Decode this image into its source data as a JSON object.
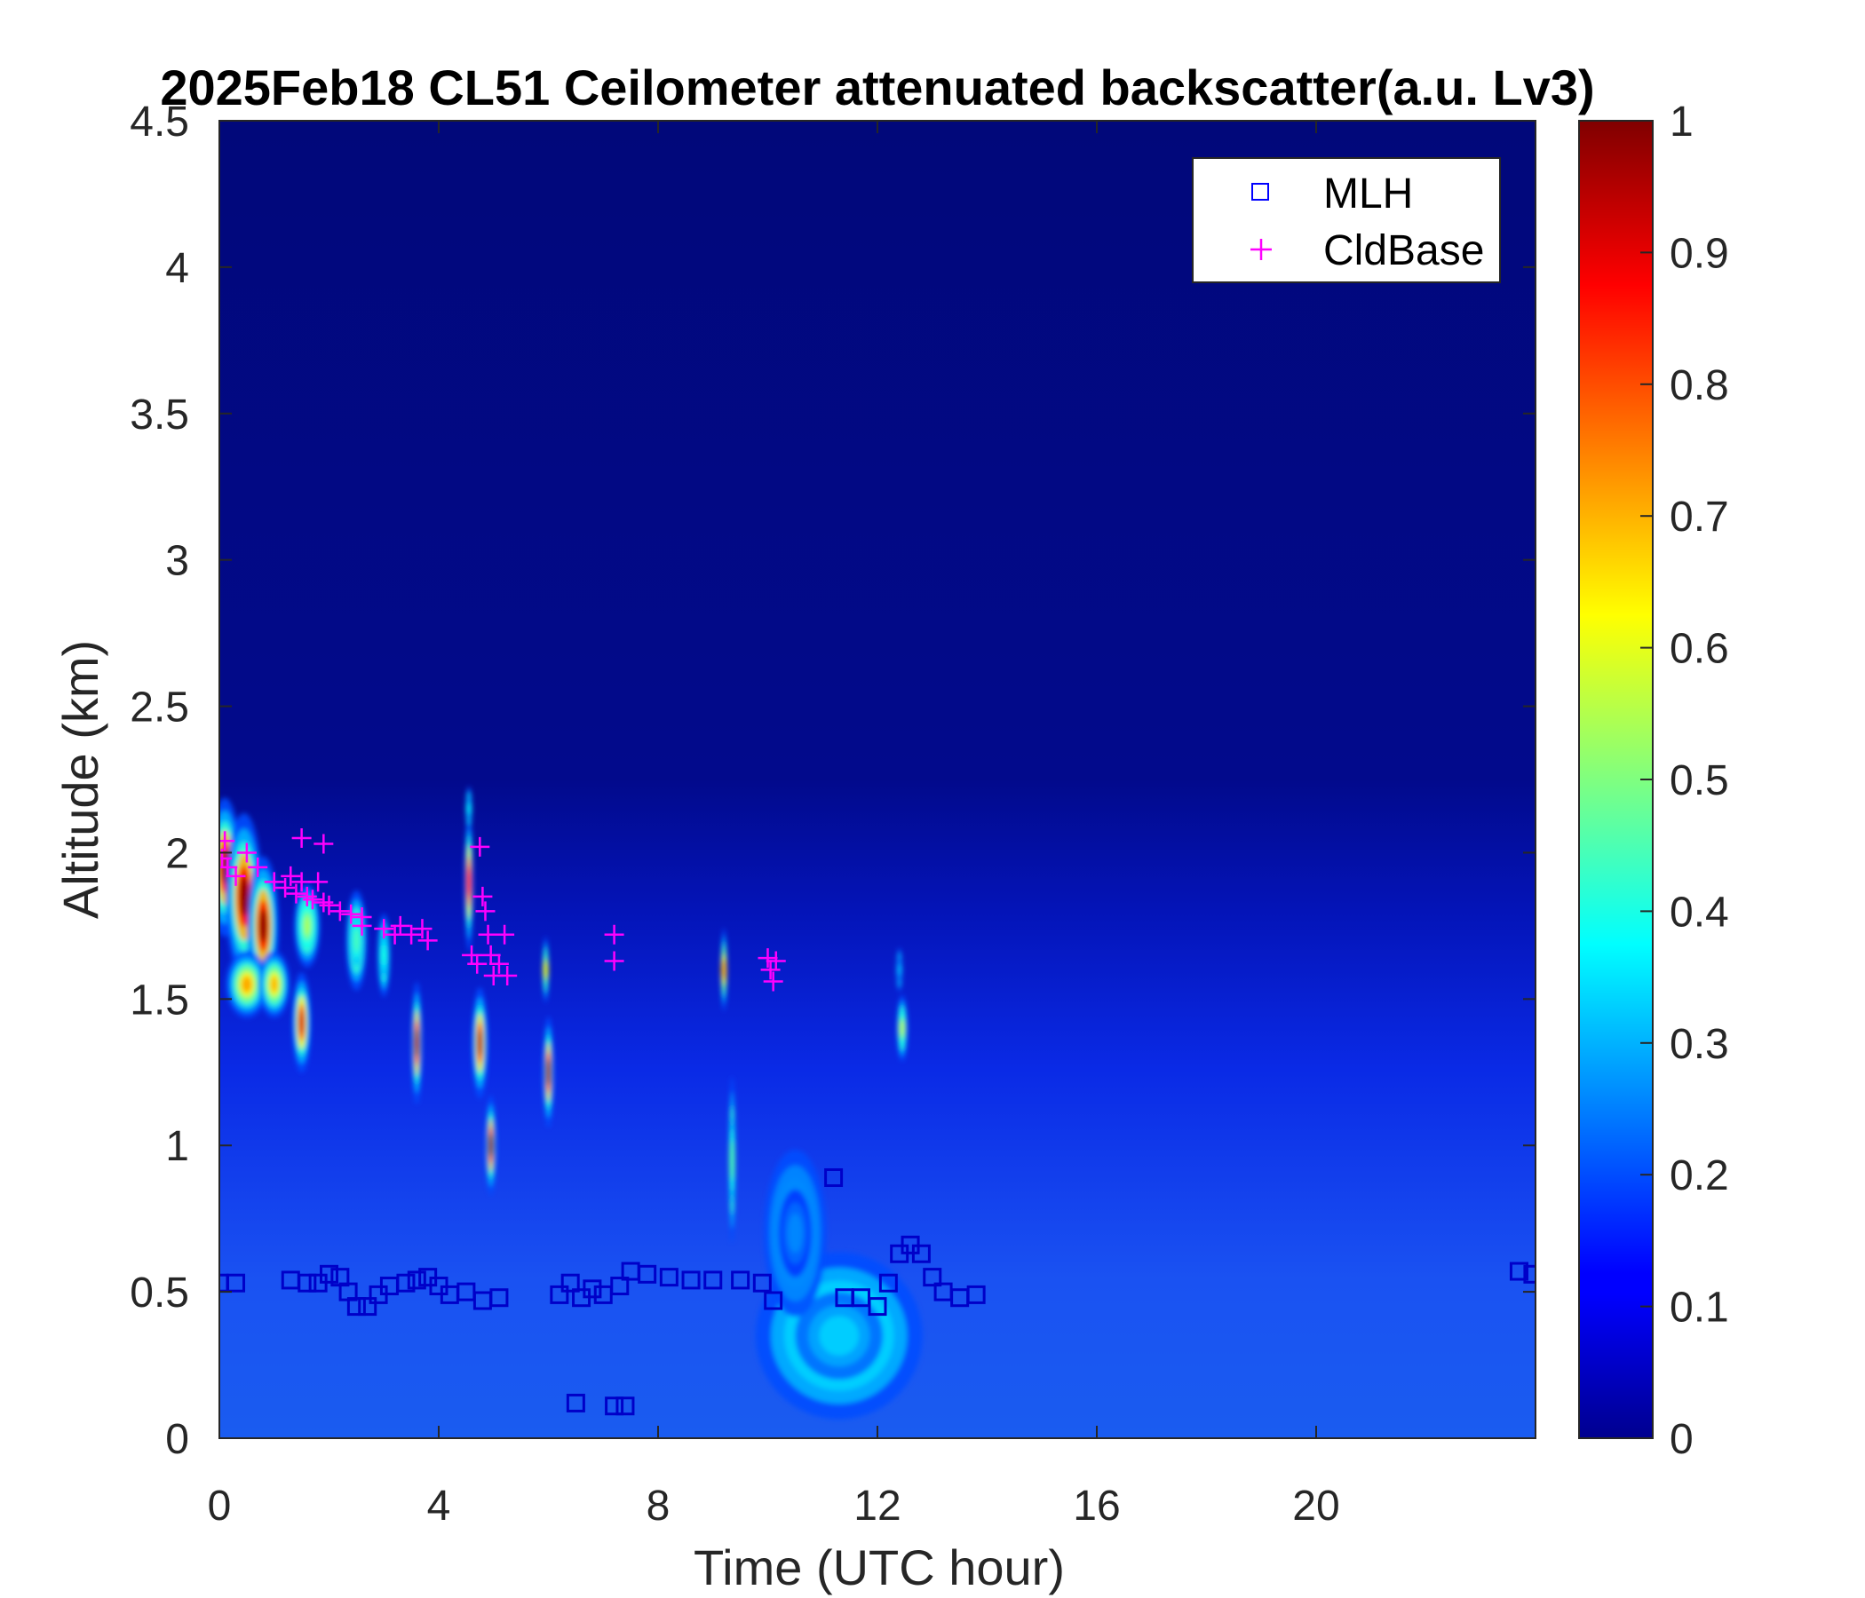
{
  "chart_data": {
    "type": "heatmap",
    "title": "2025Feb18 CL51 Ceilometer attenuated backscatter(a.u. Lv3)",
    "xlabel": "Time (UTC hour)",
    "ylabel": "Altitude (km)",
    "xlim": [
      0,
      24
    ],
    "ylim": [
      0,
      4.5
    ],
    "xticks": [
      0,
      4,
      8,
      12,
      16,
      20
    ],
    "xtick_labels": [
      "0",
      "4",
      "8",
      "12",
      "16",
      "20"
    ],
    "yticks": [
      0,
      0.5,
      1,
      1.5,
      2,
      2.5,
      3,
      3.5,
      4,
      4.5
    ],
    "ytick_labels": [
      "0",
      "0.5",
      "1",
      "1.5",
      "2",
      "2.5",
      "3",
      "3.5",
      "4",
      "4.5"
    ],
    "colormap": "jet",
    "colorbar": {
      "range": [
        0,
        1
      ],
      "ticks": [
        0,
        0.1,
        0.2,
        0.3,
        0.4,
        0.5,
        0.6,
        0.7,
        0.8,
        0.9,
        1
      ],
      "tick_labels": [
        "0",
        "0.1",
        "0.2",
        "0.3",
        "0.4",
        "0.5",
        "0.6",
        "0.7",
        "0.8",
        "0.9",
        "1"
      ]
    },
    "legend": {
      "placement": "top-right",
      "entries": [
        {
          "label": "MLH",
          "marker": "square",
          "color": "#0000ff"
        },
        {
          "label": "CldBase",
          "marker": "plus",
          "color": "#ff00ff"
        }
      ]
    },
    "features": [
      {
        "t": 0.1,
        "z": 1.95,
        "v": 0.98,
        "dt": 0.3,
        "dz": 0.25
      },
      {
        "t": 0.45,
        "z": 1.85,
        "v": 1.0,
        "dt": 0.35,
        "dz": 0.3
      },
      {
        "t": 0.8,
        "z": 1.75,
        "v": 1.0,
        "dt": 0.3,
        "dz": 0.25
      },
      {
        "t": 0.5,
        "z": 1.55,
        "v": 0.72,
        "dt": 0.4,
        "dz": 0.12
      },
      {
        "t": 1.0,
        "z": 1.55,
        "v": 0.7,
        "dt": 0.3,
        "dz": 0.12
      },
      {
        "t": 1.5,
        "z": 1.42,
        "v": 0.92,
        "dt": 0.18,
        "dz": 0.18
      },
      {
        "t": 1.6,
        "z": 1.75,
        "v": 0.55,
        "dt": 0.25,
        "dz": 0.15
      },
      {
        "t": 2.5,
        "z": 1.7,
        "v": 0.45,
        "dt": 0.2,
        "dz": 0.18
      },
      {
        "t": 3.0,
        "z": 1.65,
        "v": 0.4,
        "dt": 0.12,
        "dz": 0.15
      },
      {
        "t": 3.6,
        "z": 1.35,
        "v": 0.97,
        "dt": 0.1,
        "dz": 0.22
      },
      {
        "t": 4.55,
        "z": 1.9,
        "v": 0.85,
        "dt": 0.08,
        "dz": 0.25
      },
      {
        "t": 4.55,
        "z": 2.15,
        "v": 0.35,
        "dt": 0.06,
        "dz": 0.08
      },
      {
        "t": 4.75,
        "z": 1.35,
        "v": 0.95,
        "dt": 0.15,
        "dz": 0.2
      },
      {
        "t": 4.95,
        "z": 1.0,
        "v": 1.0,
        "dt": 0.1,
        "dz": 0.18
      },
      {
        "t": 6.0,
        "z": 1.25,
        "v": 0.98,
        "dt": 0.1,
        "dz": 0.2
      },
      {
        "t": 5.95,
        "z": 1.6,
        "v": 0.6,
        "dt": 0.04,
        "dz": 0.12
      },
      {
        "t": 9.2,
        "z": 1.6,
        "v": 0.7,
        "dt": 0.05,
        "dz": 0.15
      },
      {
        "t": 9.35,
        "z": 0.95,
        "v": 0.45,
        "dt": 0.06,
        "dz": 0.3
      },
      {
        "t": 12.45,
        "z": 1.4,
        "v": 0.55,
        "dt": 0.1,
        "dz": 0.12
      },
      {
        "t": 12.4,
        "z": 1.6,
        "v": 0.3,
        "dt": 0.05,
        "dz": 0.08
      },
      {
        "t": 11.3,
        "z": 0.35,
        "v": 0.33,
        "dt": 1.6,
        "dz": 0.3
      },
      {
        "t": 10.5,
        "z": 0.7,
        "v": 0.26,
        "dt": 0.6,
        "dz": 0.3
      }
    ],
    "mlh": [
      [
        0.0,
        0.53
      ],
      [
        0.3,
        0.53
      ],
      [
        1.3,
        0.54
      ],
      [
        1.6,
        0.53
      ],
      [
        1.8,
        0.53
      ],
      [
        2.0,
        0.56
      ],
      [
        2.2,
        0.55
      ],
      [
        2.35,
        0.5
      ],
      [
        2.5,
        0.45
      ],
      [
        2.7,
        0.45
      ],
      [
        2.9,
        0.49
      ],
      [
        3.1,
        0.52
      ],
      [
        3.4,
        0.53
      ],
      [
        3.6,
        0.54
      ],
      [
        3.8,
        0.55
      ],
      [
        4.0,
        0.52
      ],
      [
        4.2,
        0.49
      ],
      [
        4.5,
        0.5
      ],
      [
        4.8,
        0.47
      ],
      [
        5.1,
        0.48
      ],
      [
        6.2,
        0.49
      ],
      [
        6.4,
        0.53
      ],
      [
        6.6,
        0.48
      ],
      [
        6.8,
        0.51
      ],
      [
        7.0,
        0.49
      ],
      [
        7.3,
        0.52
      ],
      [
        7.5,
        0.57
      ],
      [
        7.8,
        0.56
      ],
      [
        8.2,
        0.55
      ],
      [
        8.6,
        0.54
      ],
      [
        9.0,
        0.54
      ],
      [
        9.5,
        0.54
      ],
      [
        9.9,
        0.53
      ],
      [
        10.1,
        0.47
      ],
      [
        11.2,
        0.89
      ],
      [
        11.4,
        0.48
      ],
      [
        11.7,
        0.48
      ],
      [
        12.0,
        0.45
      ],
      [
        12.2,
        0.53
      ],
      [
        12.4,
        0.63
      ],
      [
        12.6,
        0.66
      ],
      [
        12.8,
        0.63
      ],
      [
        13.0,
        0.55
      ],
      [
        13.2,
        0.5
      ],
      [
        13.5,
        0.48
      ],
      [
        13.8,
        0.49
      ],
      [
        6.5,
        0.12
      ],
      [
        7.2,
        0.11
      ],
      [
        7.4,
        0.11
      ],
      [
        23.7,
        0.57
      ],
      [
        23.95,
        0.56
      ]
    ],
    "cldbase": [
      [
        0.05,
        1.98
      ],
      [
        0.1,
        2.04
      ],
      [
        0.15,
        1.95
      ],
      [
        0.3,
        1.92
      ],
      [
        0.5,
        2.0
      ],
      [
        0.7,
        1.95
      ],
      [
        1.0,
        1.9
      ],
      [
        1.2,
        1.88
      ],
      [
        1.3,
        1.92
      ],
      [
        1.4,
        1.86
      ],
      [
        1.5,
        1.9
      ],
      [
        1.5,
        2.05
      ],
      [
        1.6,
        1.85
      ],
      [
        1.7,
        1.84
      ],
      [
        1.8,
        1.9
      ],
      [
        1.9,
        2.03
      ],
      [
        1.9,
        1.83
      ],
      [
        2.0,
        1.82
      ],
      [
        2.2,
        1.8
      ],
      [
        2.4,
        1.79
      ],
      [
        2.6,
        1.78
      ],
      [
        2.6,
        1.75
      ],
      [
        3.0,
        1.74
      ],
      [
        3.2,
        1.72
      ],
      [
        3.3,
        1.75
      ],
      [
        3.5,
        1.72
      ],
      [
        3.7,
        1.74
      ],
      [
        3.8,
        1.7
      ],
      [
        4.6,
        1.65
      ],
      [
        4.7,
        1.62
      ],
      [
        4.75,
        2.02
      ],
      [
        4.8,
        1.85
      ],
      [
        4.85,
        1.8
      ],
      [
        4.9,
        1.72
      ],
      [
        4.95,
        1.65
      ],
      [
        5.0,
        1.58
      ],
      [
        5.1,
        1.62
      ],
      [
        5.2,
        1.72
      ],
      [
        5.25,
        1.58
      ],
      [
        7.2,
        1.72
      ],
      [
        7.2,
        1.63
      ],
      [
        10.0,
        1.64
      ],
      [
        10.05,
        1.6
      ],
      [
        10.1,
        1.56
      ],
      [
        10.15,
        1.63
      ]
    ]
  }
}
